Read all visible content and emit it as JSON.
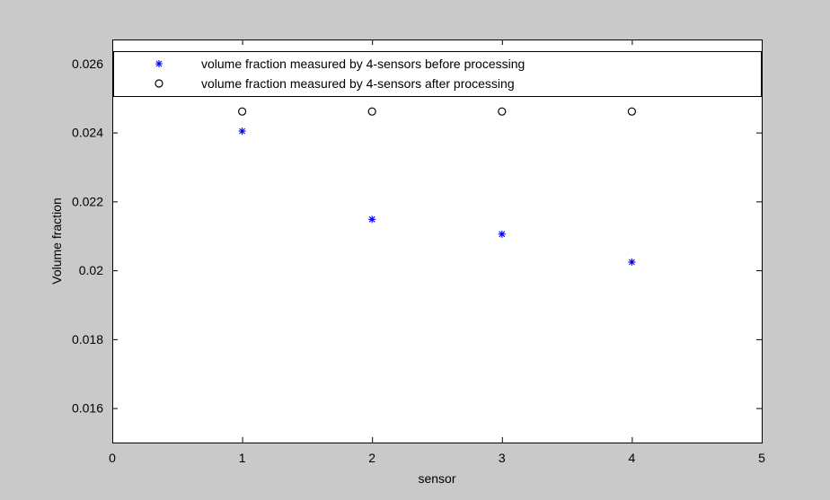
{
  "chart_data": {
    "type": "scatter",
    "title": "",
    "xlabel": "sensor",
    "ylabel": "Volume fraction",
    "xlim": [
      0,
      5
    ],
    "ylim": [
      0.015,
      0.0267
    ],
    "xticks": [
      0,
      1,
      2,
      3,
      4,
      5
    ],
    "yticks": [
      0.016,
      0.018,
      0.02,
      0.022,
      0.024,
      0.026
    ],
    "xtick_labels": [
      "0",
      "1",
      "2",
      "3",
      "4",
      "5"
    ],
    "ytick_labels": [
      "0.016",
      "0.018",
      "0.02",
      "0.022",
      "0.024",
      "0.026"
    ],
    "grid": false,
    "legend_position": "top",
    "series": [
      {
        "name": "volume fraction measured by 4-sensors before processing",
        "marker": "asterisk",
        "color": "#0000ff",
        "x": [
          1,
          2,
          3,
          4
        ],
        "y": [
          0.02404,
          0.02148,
          0.02105,
          0.02024
        ]
      },
      {
        "name": "volume fraction measured by 4-sensors after processing",
        "marker": "circle",
        "color": "#000000",
        "x": [
          1,
          2,
          3,
          4
        ],
        "y": [
          0.02461,
          0.02461,
          0.02461,
          0.02461
        ]
      }
    ]
  }
}
